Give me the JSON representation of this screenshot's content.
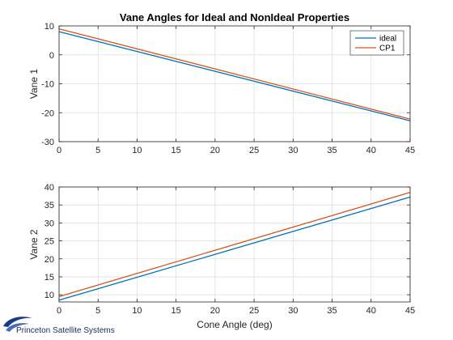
{
  "figure": {
    "title": "Vane Angles for Ideal and NonIdeal Properties",
    "brand": "Princeton Satellite Systems"
  },
  "chart_data": [
    {
      "type": "line",
      "title": "Vane Angles for Ideal and NonIdeal Properties",
      "xlabel": "",
      "ylabel": "Vane 1",
      "xlim": [
        0,
        45
      ],
      "ylim": [
        -30,
        10
      ],
      "xticks": [
        0,
        5,
        10,
        15,
        20,
        25,
        30,
        35,
        40,
        45
      ],
      "yticks": [
        -30,
        -20,
        -10,
        0,
        10
      ],
      "grid": true,
      "legend": "top-right",
      "series": [
        {
          "name": "ideal",
          "color": "#0072BD",
          "x": [
            0,
            45
          ],
          "y": [
            8,
            -22.8
          ]
        },
        {
          "name": "CP1",
          "color": "#D95319",
          "x": [
            0,
            45
          ],
          "y": [
            9,
            -22.2
          ]
        }
      ]
    },
    {
      "type": "line",
      "title": "",
      "xlabel": "Cone Angle (deg)",
      "ylabel": "Vane 2",
      "xlim": [
        0,
        45
      ],
      "ylim": [
        8,
        40
      ],
      "xticks": [
        0,
        5,
        10,
        15,
        20,
        25,
        30,
        35,
        40,
        45
      ],
      "yticks": [
        10,
        15,
        20,
        25,
        30,
        35,
        40
      ],
      "grid": true,
      "legend": "",
      "series": [
        {
          "name": "ideal",
          "color": "#0072BD",
          "x": [
            0,
            45
          ],
          "y": [
            8.5,
            37.2
          ]
        },
        {
          "name": "CP1",
          "color": "#D95319",
          "x": [
            0,
            45
          ],
          "y": [
            9.5,
            38.5
          ]
        }
      ]
    }
  ]
}
